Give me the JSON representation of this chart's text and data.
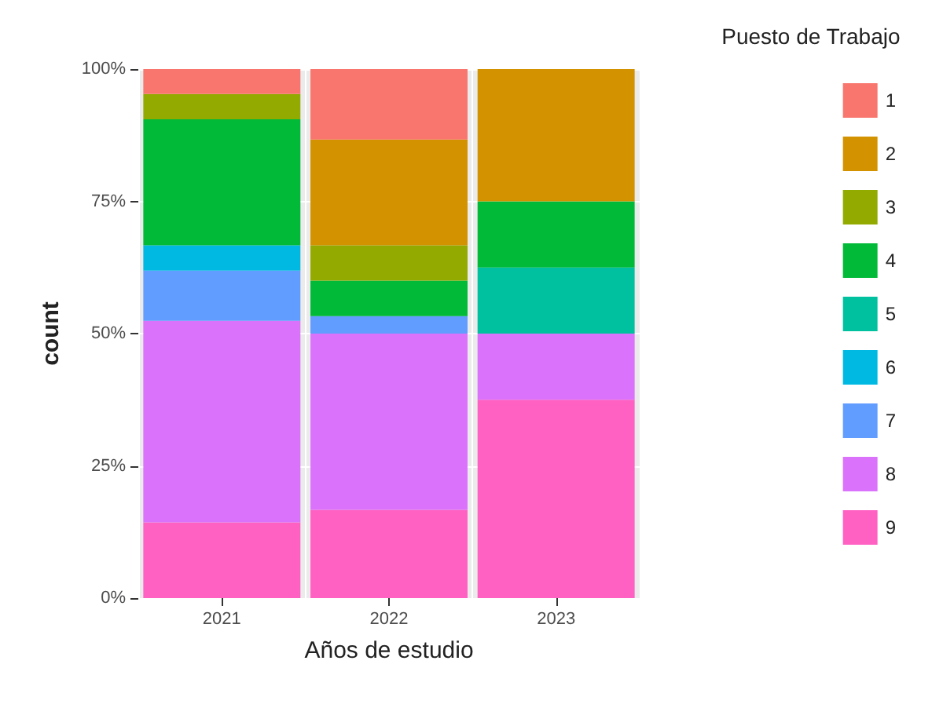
{
  "chart_data": {
    "type": "bar",
    "stacked": true,
    "xlabel": "Años de estudio",
    "ylabel": "count",
    "legend_title": "Puesto de Trabajo",
    "legend": "right",
    "grid": true,
    "categories": [
      "2021",
      "2022",
      "2023"
    ],
    "ylim": [
      0,
      100
    ],
    "yticks": [
      {
        "value": 0,
        "label": "0%"
      },
      {
        "value": 25,
        "label": "25%"
      },
      {
        "value": 50,
        "label": "50%"
      },
      {
        "value": 75,
        "label": "75%"
      },
      {
        "value": 100,
        "label": "100%"
      }
    ],
    "series": [
      {
        "name": "9",
        "color": "#ff61c3",
        "values": [
          14.3,
          16.7,
          37.5
        ]
      },
      {
        "name": "8",
        "color": "#db72fb",
        "values": [
          38.1,
          33.3,
          12.5
        ]
      },
      {
        "name": "7",
        "color": "#619cff",
        "values": [
          9.5,
          3.3,
          null
        ]
      },
      {
        "name": "6",
        "color": "#00b9e3",
        "values": [
          4.8,
          null,
          null
        ]
      },
      {
        "name": "5",
        "color": "#00c19f",
        "values": [
          null,
          null,
          12.5
        ]
      },
      {
        "name": "4",
        "color": "#00ba38",
        "values": [
          23.8,
          6.7,
          12.5
        ]
      },
      {
        "name": "3",
        "color": "#93aa00",
        "values": [
          4.8,
          6.7,
          null
        ]
      },
      {
        "name": "2",
        "color": "#d39200",
        "values": [
          null,
          20,
          25
        ]
      },
      {
        "name": "1",
        "color": "#f8766d",
        "values": [
          4.8,
          13.3,
          null
        ]
      }
    ]
  }
}
